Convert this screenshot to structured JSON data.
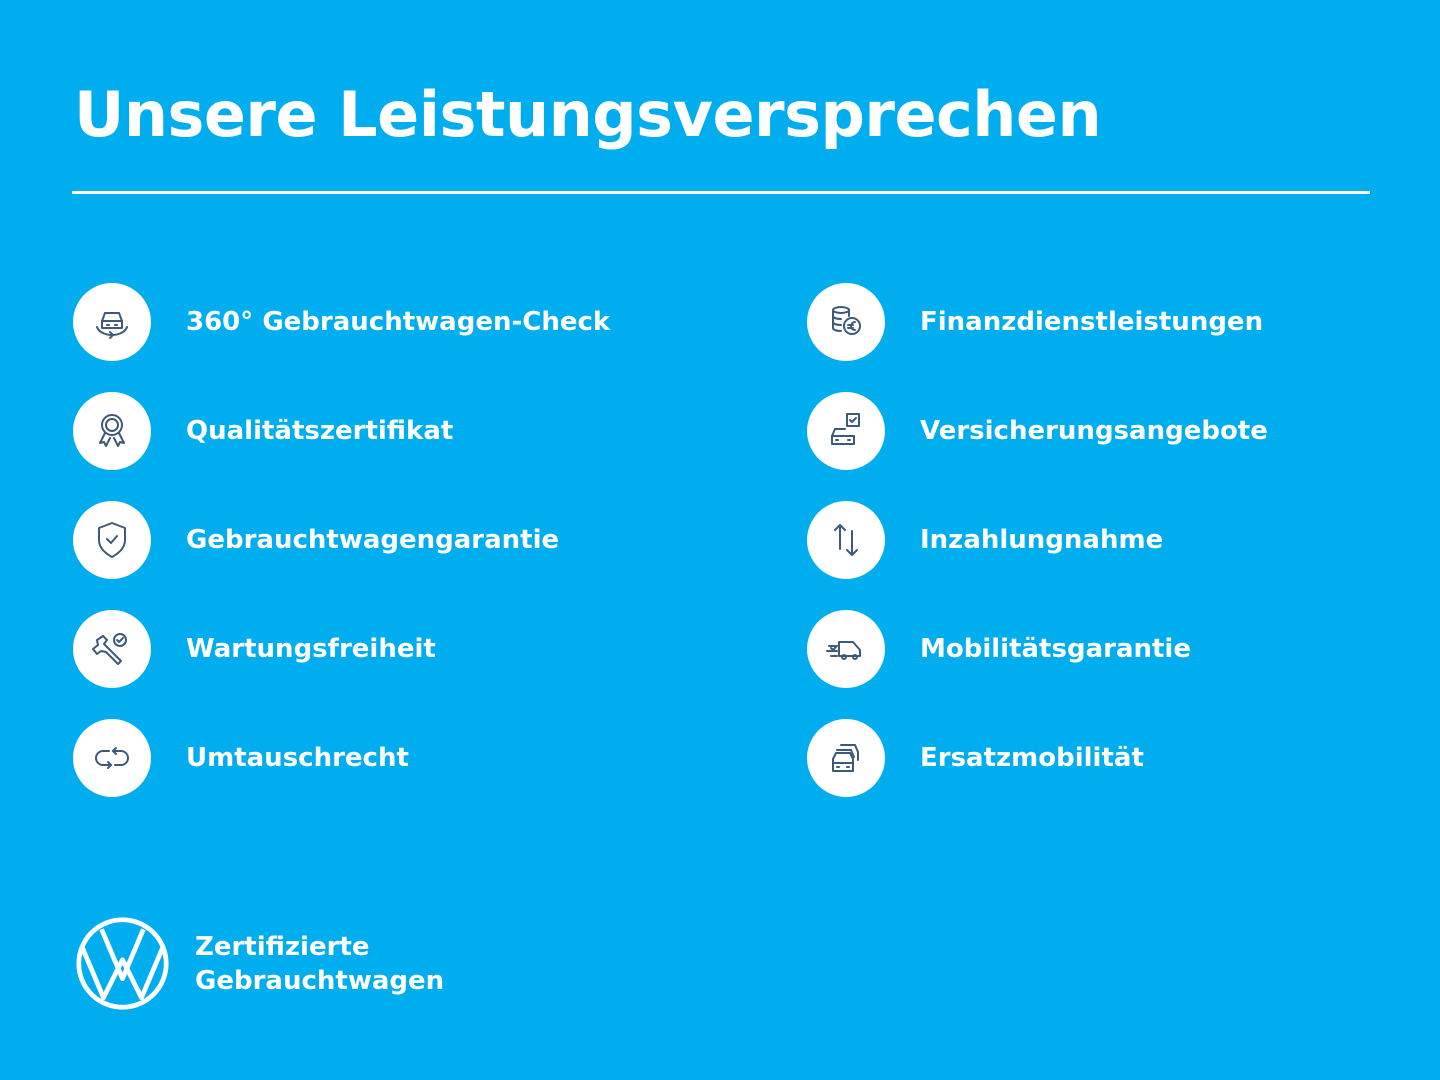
{
  "title": "Unsere Leistungsversprechen",
  "colors": {
    "background": "#00aeef",
    "icon_stroke": "#3d5a78",
    "foreground": "#ffffff"
  },
  "left_items": [
    {
      "label": "360° Gebrauchtwagen-Check",
      "icon": "car-360-icon"
    },
    {
      "label": "Qualitätszertifikat",
      "icon": "award-rosette-icon"
    },
    {
      "label": "Gebrauchtwagengarantie",
      "icon": "shield-check-icon"
    },
    {
      "label": "Wartungsfreiheit",
      "icon": "wrench-check-icon"
    },
    {
      "label": "Umtauschrecht",
      "icon": "exchange-arrows-icon"
    }
  ],
  "right_items": [
    {
      "label": "Finanzdienstleistungen",
      "icon": "coins-euro-icon"
    },
    {
      "label": "Versicherungsangebote",
      "icon": "car-insurance-icon"
    },
    {
      "label": "Inzahlungnahme",
      "icon": "up-down-arrows-icon"
    },
    {
      "label": "Mobilitätsgarantie",
      "icon": "fast-van-icon"
    },
    {
      "label": "Ersatzmobilität",
      "icon": "replacement-cars-icon"
    }
  ],
  "brand": {
    "line1": "Zertifizierte",
    "line2": "Gebrauchtwagen",
    "logo": "vw-logo"
  }
}
